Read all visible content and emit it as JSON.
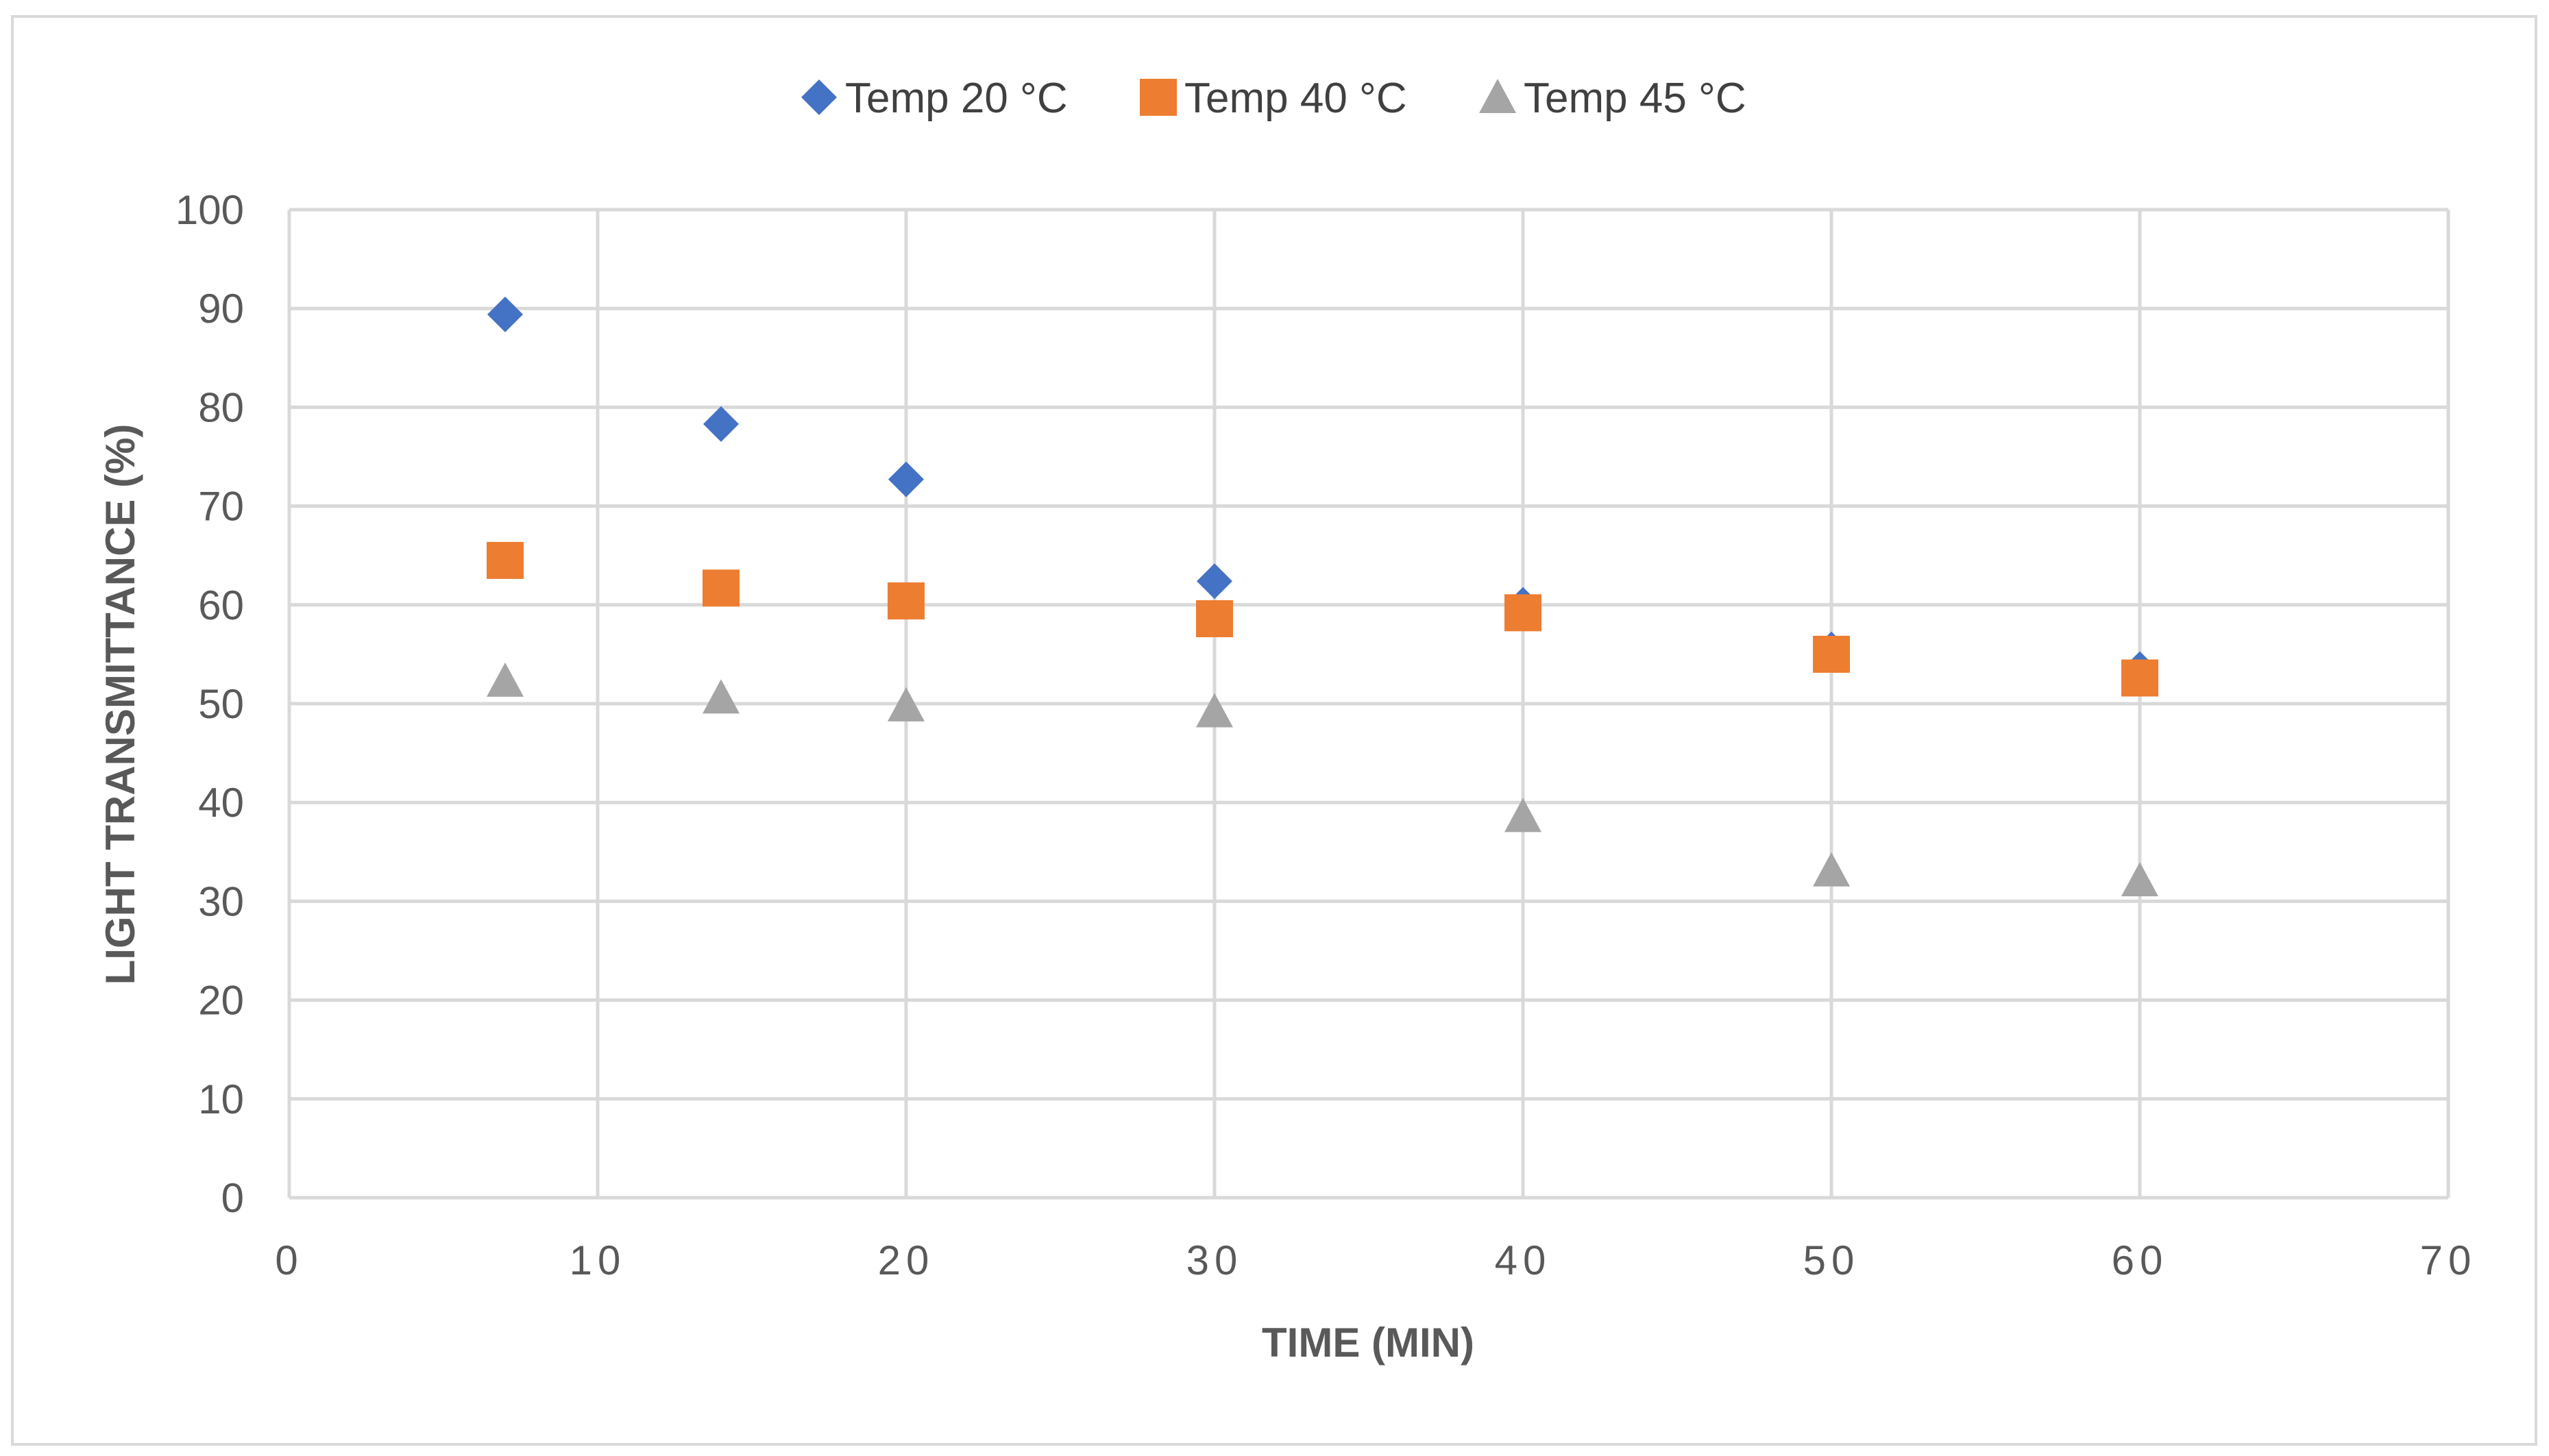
{
  "chart_data": {
    "type": "scatter",
    "title": "",
    "xlabel": "TIME (MIN)",
    "ylabel": "LIGHT TRANSMITTANCE (%)",
    "xlim": [
      0,
      70
    ],
    "ylim": [
      0,
      100
    ],
    "xticks": [
      0,
      10,
      20,
      30,
      40,
      50,
      60,
      70
    ],
    "yticks": [
      0,
      10,
      20,
      30,
      40,
      50,
      60,
      70,
      80,
      90,
      100
    ],
    "grid": true,
    "legend_position": "top-center",
    "series": [
      {
        "name": "Temp 20 °C",
        "marker": "diamond",
        "color": "#4472c4",
        "x": [
          7,
          14,
          20,
          30,
          40,
          50,
          60
        ],
        "y": [
          89.4,
          78.3,
          72.7,
          62.4,
          60.0,
          55.5,
          53.5
        ]
      },
      {
        "name": "Temp 40 °C",
        "marker": "square",
        "color": "#ed7d31",
        "x": [
          7,
          14,
          20,
          30,
          40,
          50,
          60
        ],
        "y": [
          64.5,
          61.7,
          60.4,
          58.6,
          59.2,
          55.0,
          52.6
        ]
      },
      {
        "name": "Temp 45 °C",
        "marker": "triangle",
        "color": "#a5a5a5",
        "x": [
          7,
          14,
          20,
          30,
          40,
          50,
          60
        ],
        "y": [
          52.3,
          50.6,
          49.8,
          49.2,
          38.6,
          33.1,
          32.1
        ]
      }
    ]
  },
  "colors": {
    "gridline": "#d9d9d9",
    "axis_text": "#595959",
    "legend_text": "#404040"
  }
}
